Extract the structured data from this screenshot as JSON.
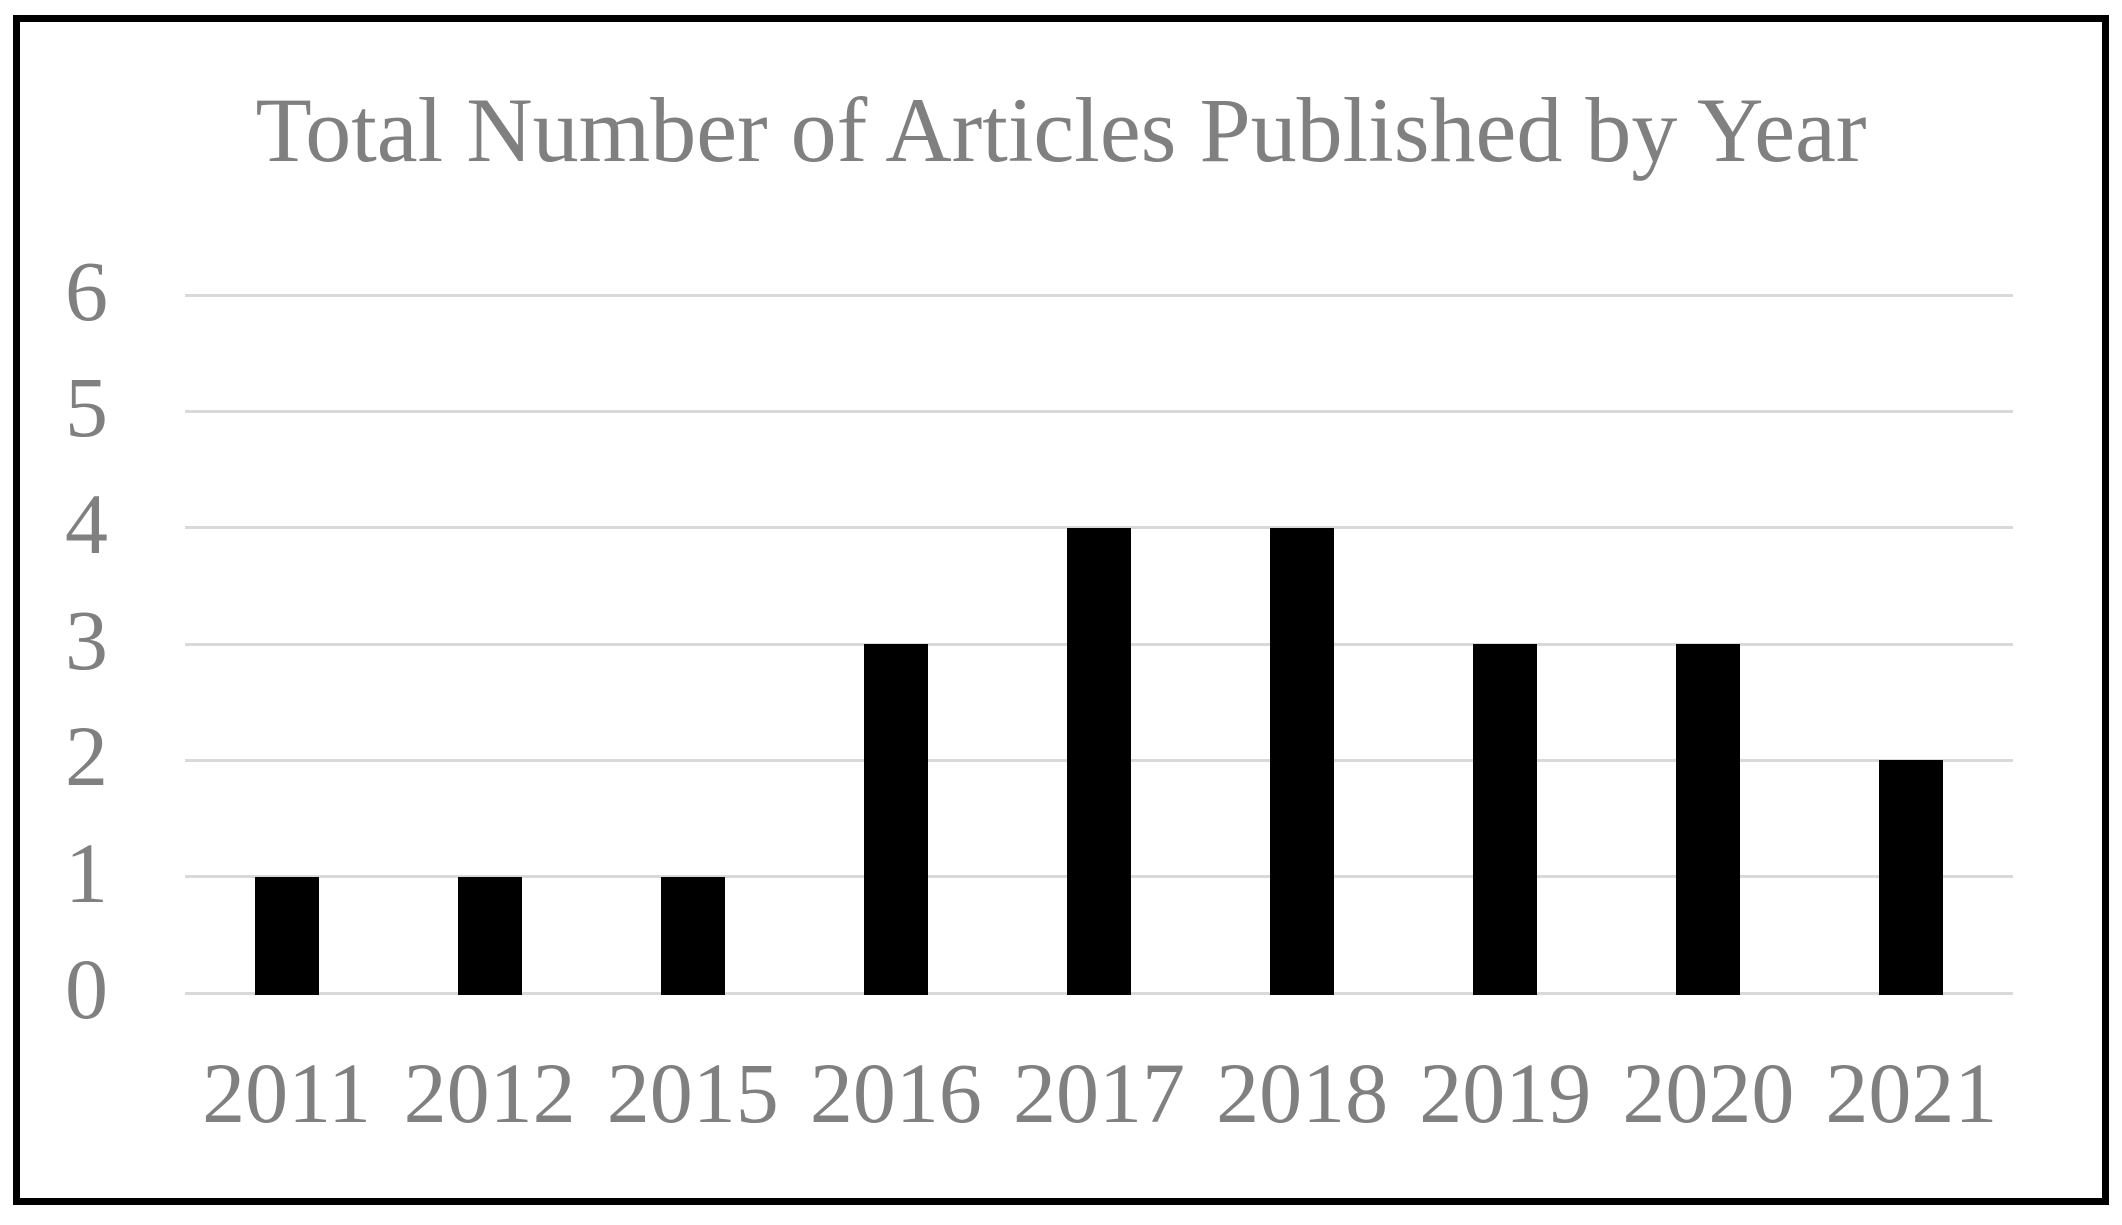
{
  "chart_data": {
    "type": "bar",
    "title": "Total Number of Articles Published by Year",
    "categories": [
      "2011",
      "2012",
      "2015",
      "2016",
      "2017",
      "2018",
      "2019",
      "2020",
      "2021"
    ],
    "values": [
      1,
      1,
      1,
      3,
      4,
      4,
      3,
      3,
      2
    ],
    "xlabel": "",
    "ylabel": "",
    "ylim": [
      0,
      6
    ],
    "yticks": [
      0,
      1,
      2,
      3,
      4,
      5,
      6
    ],
    "grid": true,
    "legend_position": "none",
    "colors": {
      "bar": "#000000",
      "text": "#808080",
      "gridline": "#d9d9d9",
      "frame_border": "#000000",
      "background": "#ffffff"
    }
  }
}
